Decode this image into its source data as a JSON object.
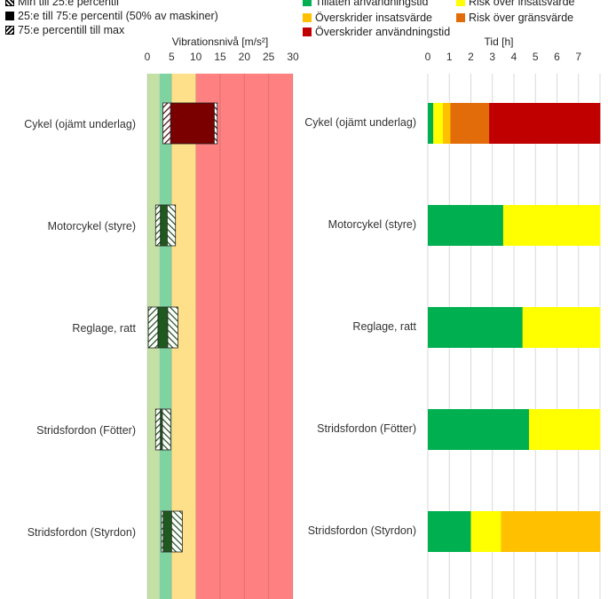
{
  "legend_left": [
    {
      "label": "Min till 25:e percentil",
      "icon": "hatch-min-icon"
    },
    {
      "label": "25:e till 75:e percentil (50% av maskiner)",
      "icon": "solid-square-icon"
    },
    {
      "label": "75:e percentill till max",
      "icon": "hatch-max-icon"
    }
  ],
  "legend_right": [
    {
      "label": "Tillåten användningstid",
      "color": "#00b050"
    },
    {
      "label": "Risk över insatsvärde",
      "color": "#ffff00"
    },
    {
      "label": "Överskrider insatsvärde",
      "color": "#ffc000"
    },
    {
      "label": "Risk över gränsvärde",
      "color": "#e36c0a"
    },
    {
      "label": "Överskrider användningstid",
      "color": "#c00000"
    }
  ],
  "chart_data": [
    {
      "type": "bar",
      "title": "",
      "xlabel": "Vibrationsnivå [m/s²]",
      "ylabel": "",
      "xlim": [
        0,
        30
      ],
      "ticks": [
        "0",
        "5",
        "10",
        "15",
        "20",
        "25",
        "30"
      ],
      "zones": [
        {
          "from": 0,
          "to": 2.5,
          "color": "#c5e0a5"
        },
        {
          "from": 2.5,
          "to": 5,
          "color": "#7fd3a1"
        },
        {
          "from": 5,
          "to": 10,
          "color": "#ffe08a"
        },
        {
          "from": 10,
          "to": 30,
          "color": "#ff8080"
        }
      ],
      "categories": [
        "Cykel (ojämt underlag)",
        "Motorcykel (styre)",
        "Reglage, ratt",
        "Stridsfordon (Fötter)",
        "Stridsfordon (Styrdon)"
      ],
      "series": [
        {
          "min": 3.2,
          "q1": 4.8,
          "q3": 13.8,
          "max": 14.4,
          "fill": "#7a0000"
        },
        {
          "min": 1.7,
          "q1": 2.7,
          "q3": 4.1,
          "max": 5.8,
          "fill": "#1e5a1e"
        },
        {
          "min": 0.2,
          "q1": 2.2,
          "q3": 4.2,
          "max": 6.3,
          "fill": "#1e5a1e"
        },
        {
          "min": 1.7,
          "q1": 2.7,
          "q3": 3.1,
          "max": 4.8,
          "fill": "#1e5a1e"
        },
        {
          "min": 2.9,
          "q1": 3.3,
          "q3": 5.0,
          "max": 7.2,
          "fill": "#1e5a1e"
        }
      ]
    },
    {
      "type": "bar",
      "stacked": true,
      "title": "",
      "xlabel": "Tid [h]",
      "ylabel": "",
      "xlim": [
        0,
        8
      ],
      "ticks": [
        "0",
        "1",
        "2",
        "3",
        "4",
        "5",
        "6",
        "7"
      ],
      "categories": [
        "Cykel (ojämt underlag)",
        "Motorcykel (styre)",
        "Reglage, ratt",
        "Stridsfordon (Fötter)",
        "Stridsfordon (Styrdon)"
      ],
      "series": [
        {
          "name": "Tillåten användningstid",
          "values": [
            0.25,
            3.5,
            4.4,
            4.7,
            2.0
          ]
        },
        {
          "name": "Risk över insatsvärde",
          "values": [
            0.45,
            4.5,
            3.6,
            3.3,
            1.4
          ]
        },
        {
          "name": "Överskrider insatsvärde",
          "values": [
            0.35,
            0,
            0,
            0,
            4.6
          ]
        },
        {
          "name": "Risk över gränsvärde",
          "values": [
            1.8,
            0,
            0,
            0,
            0
          ]
        },
        {
          "name": "Överskrider användningstid",
          "values": [
            5.15,
            0,
            0,
            0,
            0
          ]
        }
      ]
    }
  ]
}
